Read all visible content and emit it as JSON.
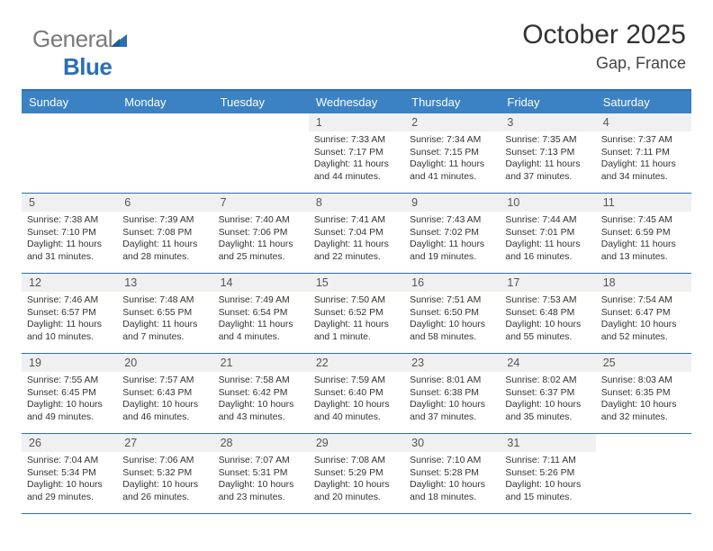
{
  "brand": {
    "part1": "General",
    "part2": "Blue"
  },
  "title": "October 2025",
  "subtitle": "Gap, France",
  "colors": {
    "header_bar": "#3b82c4",
    "rule": "#2b6fb5",
    "daynum_bg": "#eef0f2",
    "text": "#333333",
    "logo_gray": "#7a7a7a",
    "logo_blue": "#2b6fb5"
  },
  "typography": {
    "title_fontsize": 30,
    "subtitle_fontsize": 18,
    "header_fontsize": 13,
    "body_fontsize": 10.4
  },
  "day_headers": [
    "Sunday",
    "Monday",
    "Tuesday",
    "Wednesday",
    "Thursday",
    "Friday",
    "Saturday"
  ],
  "weeks": [
    [
      {
        "blank": true
      },
      {
        "blank": true
      },
      {
        "blank": true
      },
      {
        "num": "1",
        "sunrise": "7:33 AM",
        "sunset": "7:17 PM",
        "daylight": "11 hours and 44 minutes."
      },
      {
        "num": "2",
        "sunrise": "7:34 AM",
        "sunset": "7:15 PM",
        "daylight": "11 hours and 41 minutes."
      },
      {
        "num": "3",
        "sunrise": "7:35 AM",
        "sunset": "7:13 PM",
        "daylight": "11 hours and 37 minutes."
      },
      {
        "num": "4",
        "sunrise": "7:37 AM",
        "sunset": "7:11 PM",
        "daylight": "11 hours and 34 minutes."
      }
    ],
    [
      {
        "num": "5",
        "sunrise": "7:38 AM",
        "sunset": "7:10 PM",
        "daylight": "11 hours and 31 minutes."
      },
      {
        "num": "6",
        "sunrise": "7:39 AM",
        "sunset": "7:08 PM",
        "daylight": "11 hours and 28 minutes."
      },
      {
        "num": "7",
        "sunrise": "7:40 AM",
        "sunset": "7:06 PM",
        "daylight": "11 hours and 25 minutes."
      },
      {
        "num": "8",
        "sunrise": "7:41 AM",
        "sunset": "7:04 PM",
        "daylight": "11 hours and 22 minutes."
      },
      {
        "num": "9",
        "sunrise": "7:43 AM",
        "sunset": "7:02 PM",
        "daylight": "11 hours and 19 minutes."
      },
      {
        "num": "10",
        "sunrise": "7:44 AM",
        "sunset": "7:01 PM",
        "daylight": "11 hours and 16 minutes."
      },
      {
        "num": "11",
        "sunrise": "7:45 AM",
        "sunset": "6:59 PM",
        "daylight": "11 hours and 13 minutes."
      }
    ],
    [
      {
        "num": "12",
        "sunrise": "7:46 AM",
        "sunset": "6:57 PM",
        "daylight": "11 hours and 10 minutes."
      },
      {
        "num": "13",
        "sunrise": "7:48 AM",
        "sunset": "6:55 PM",
        "daylight": "11 hours and 7 minutes."
      },
      {
        "num": "14",
        "sunrise": "7:49 AM",
        "sunset": "6:54 PM",
        "daylight": "11 hours and 4 minutes."
      },
      {
        "num": "15",
        "sunrise": "7:50 AM",
        "sunset": "6:52 PM",
        "daylight": "11 hours and 1 minute."
      },
      {
        "num": "16",
        "sunrise": "7:51 AM",
        "sunset": "6:50 PM",
        "daylight": "10 hours and 58 minutes."
      },
      {
        "num": "17",
        "sunrise": "7:53 AM",
        "sunset": "6:48 PM",
        "daylight": "10 hours and 55 minutes."
      },
      {
        "num": "18",
        "sunrise": "7:54 AM",
        "sunset": "6:47 PM",
        "daylight": "10 hours and 52 minutes."
      }
    ],
    [
      {
        "num": "19",
        "sunrise": "7:55 AM",
        "sunset": "6:45 PM",
        "daylight": "10 hours and 49 minutes."
      },
      {
        "num": "20",
        "sunrise": "7:57 AM",
        "sunset": "6:43 PM",
        "daylight": "10 hours and 46 minutes."
      },
      {
        "num": "21",
        "sunrise": "7:58 AM",
        "sunset": "6:42 PM",
        "daylight": "10 hours and 43 minutes."
      },
      {
        "num": "22",
        "sunrise": "7:59 AM",
        "sunset": "6:40 PM",
        "daylight": "10 hours and 40 minutes."
      },
      {
        "num": "23",
        "sunrise": "8:01 AM",
        "sunset": "6:38 PM",
        "daylight": "10 hours and 37 minutes."
      },
      {
        "num": "24",
        "sunrise": "8:02 AM",
        "sunset": "6:37 PM",
        "daylight": "10 hours and 35 minutes."
      },
      {
        "num": "25",
        "sunrise": "8:03 AM",
        "sunset": "6:35 PM",
        "daylight": "10 hours and 32 minutes."
      }
    ],
    [
      {
        "num": "26",
        "sunrise": "7:04 AM",
        "sunset": "5:34 PM",
        "daylight": "10 hours and 29 minutes."
      },
      {
        "num": "27",
        "sunrise": "7:06 AM",
        "sunset": "5:32 PM",
        "daylight": "10 hours and 26 minutes."
      },
      {
        "num": "28",
        "sunrise": "7:07 AM",
        "sunset": "5:31 PM",
        "daylight": "10 hours and 23 minutes."
      },
      {
        "num": "29",
        "sunrise": "7:08 AM",
        "sunset": "5:29 PM",
        "daylight": "10 hours and 20 minutes."
      },
      {
        "num": "30",
        "sunrise": "7:10 AM",
        "sunset": "5:28 PM",
        "daylight": "10 hours and 18 minutes."
      },
      {
        "num": "31",
        "sunrise": "7:11 AM",
        "sunset": "5:26 PM",
        "daylight": "10 hours and 15 minutes."
      },
      {
        "blank": true
      }
    ]
  ]
}
